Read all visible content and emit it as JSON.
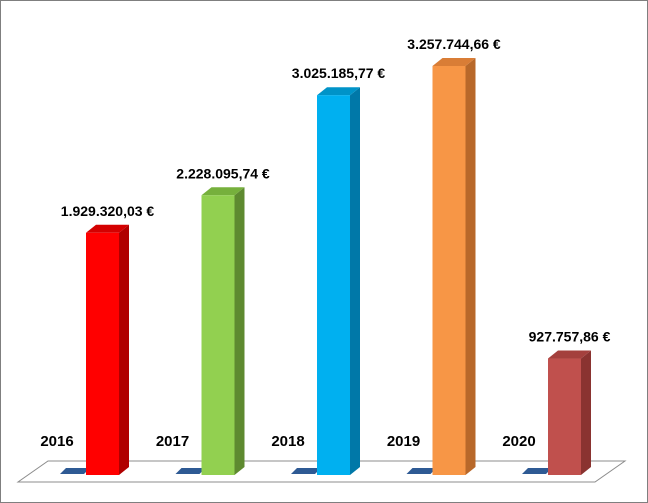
{
  "chart_data": {
    "type": "bar",
    "categories": [
      "2016",
      "2017",
      "2018",
      "2019",
      "2020"
    ],
    "values": [
      1929320.03,
      2228095.74,
      3025185.77,
      3257744.66,
      927757.86
    ],
    "value_labels": [
      "1.929.320,03 €",
      "2.228.095,74 €",
      "3.025.185,77 €",
      "3.257.744,66 €",
      "927.757,86 €"
    ],
    "title": "",
    "xlabel": "",
    "ylabel": "",
    "ylim": [
      0,
      3500000
    ],
    "grid": false,
    "legend": "none",
    "style": "3d-column",
    "colors": [
      {
        "front": "#ff0000",
        "side": "#b00000",
        "top": "#d40000"
      },
      {
        "front": "#92d050",
        "side": "#5e8a30",
        "top": "#76b03c"
      },
      {
        "front": "#00b0f0",
        "side": "#0078a8",
        "top": "#0093c8"
      },
      {
        "front": "#f79646",
        "side": "#b8682a",
        "top": "#d97d36"
      },
      {
        "front": "#c0504d",
        "side": "#8a3330",
        "top": "#a4403d"
      }
    ],
    "floor_marker_color": "#2e5a94"
  }
}
